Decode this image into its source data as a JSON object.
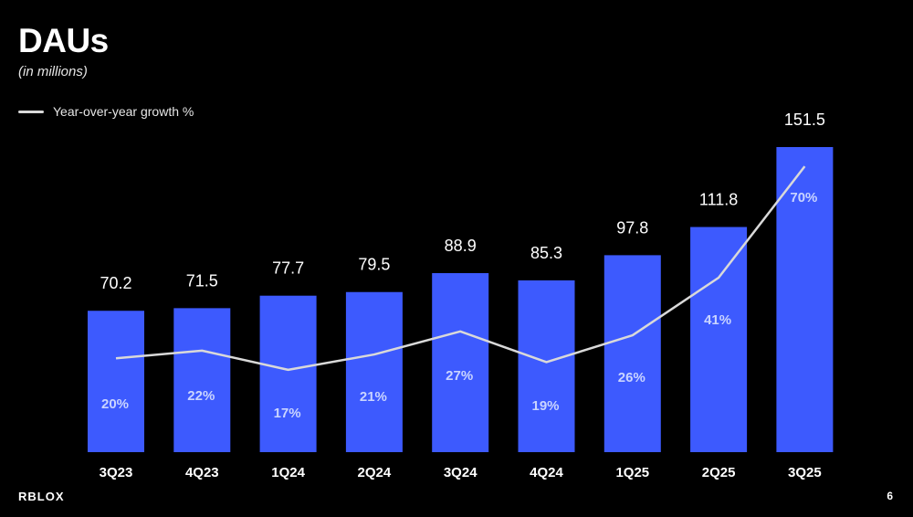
{
  "slide": {
    "title": "DAUs",
    "subtitle": "(in millions)",
    "logo": "RBLOX",
    "page_number": "6"
  },
  "colors": {
    "background": "#000000",
    "bar": "#3d5afe",
    "line": "#d9d9d9",
    "text": "#ffffff"
  },
  "chart_data": {
    "type": "bar",
    "title": "DAUs",
    "subtitle": "(in millions)",
    "categories": [
      "3Q23",
      "4Q23",
      "1Q24",
      "2Q24",
      "3Q24",
      "4Q24",
      "1Q25",
      "2Q25",
      "3Q25"
    ],
    "series": [
      {
        "type": "bar",
        "values": [
          70.2,
          71.5,
          77.7,
          79.5,
          88.9,
          85.3,
          97.8,
          111.8,
          151.5
        ],
        "value_labels": [
          "70.2",
          "71.5",
          "77.7",
          "79.5",
          "88.9",
          "85.3",
          "97.8",
          "111.8",
          "151.5"
        ]
      },
      {
        "name": "Year-over-year growth %",
        "type": "line",
        "values": [
          20,
          22,
          17,
          21,
          27,
          19,
          26,
          41,
          70
        ],
        "value_labels": [
          "20%",
          "22%",
          "17%",
          "21%",
          "27%",
          "19%",
          "26%",
          "41%",
          "70%"
        ]
      }
    ],
    "legend": "top-left",
    "grid": false
  }
}
